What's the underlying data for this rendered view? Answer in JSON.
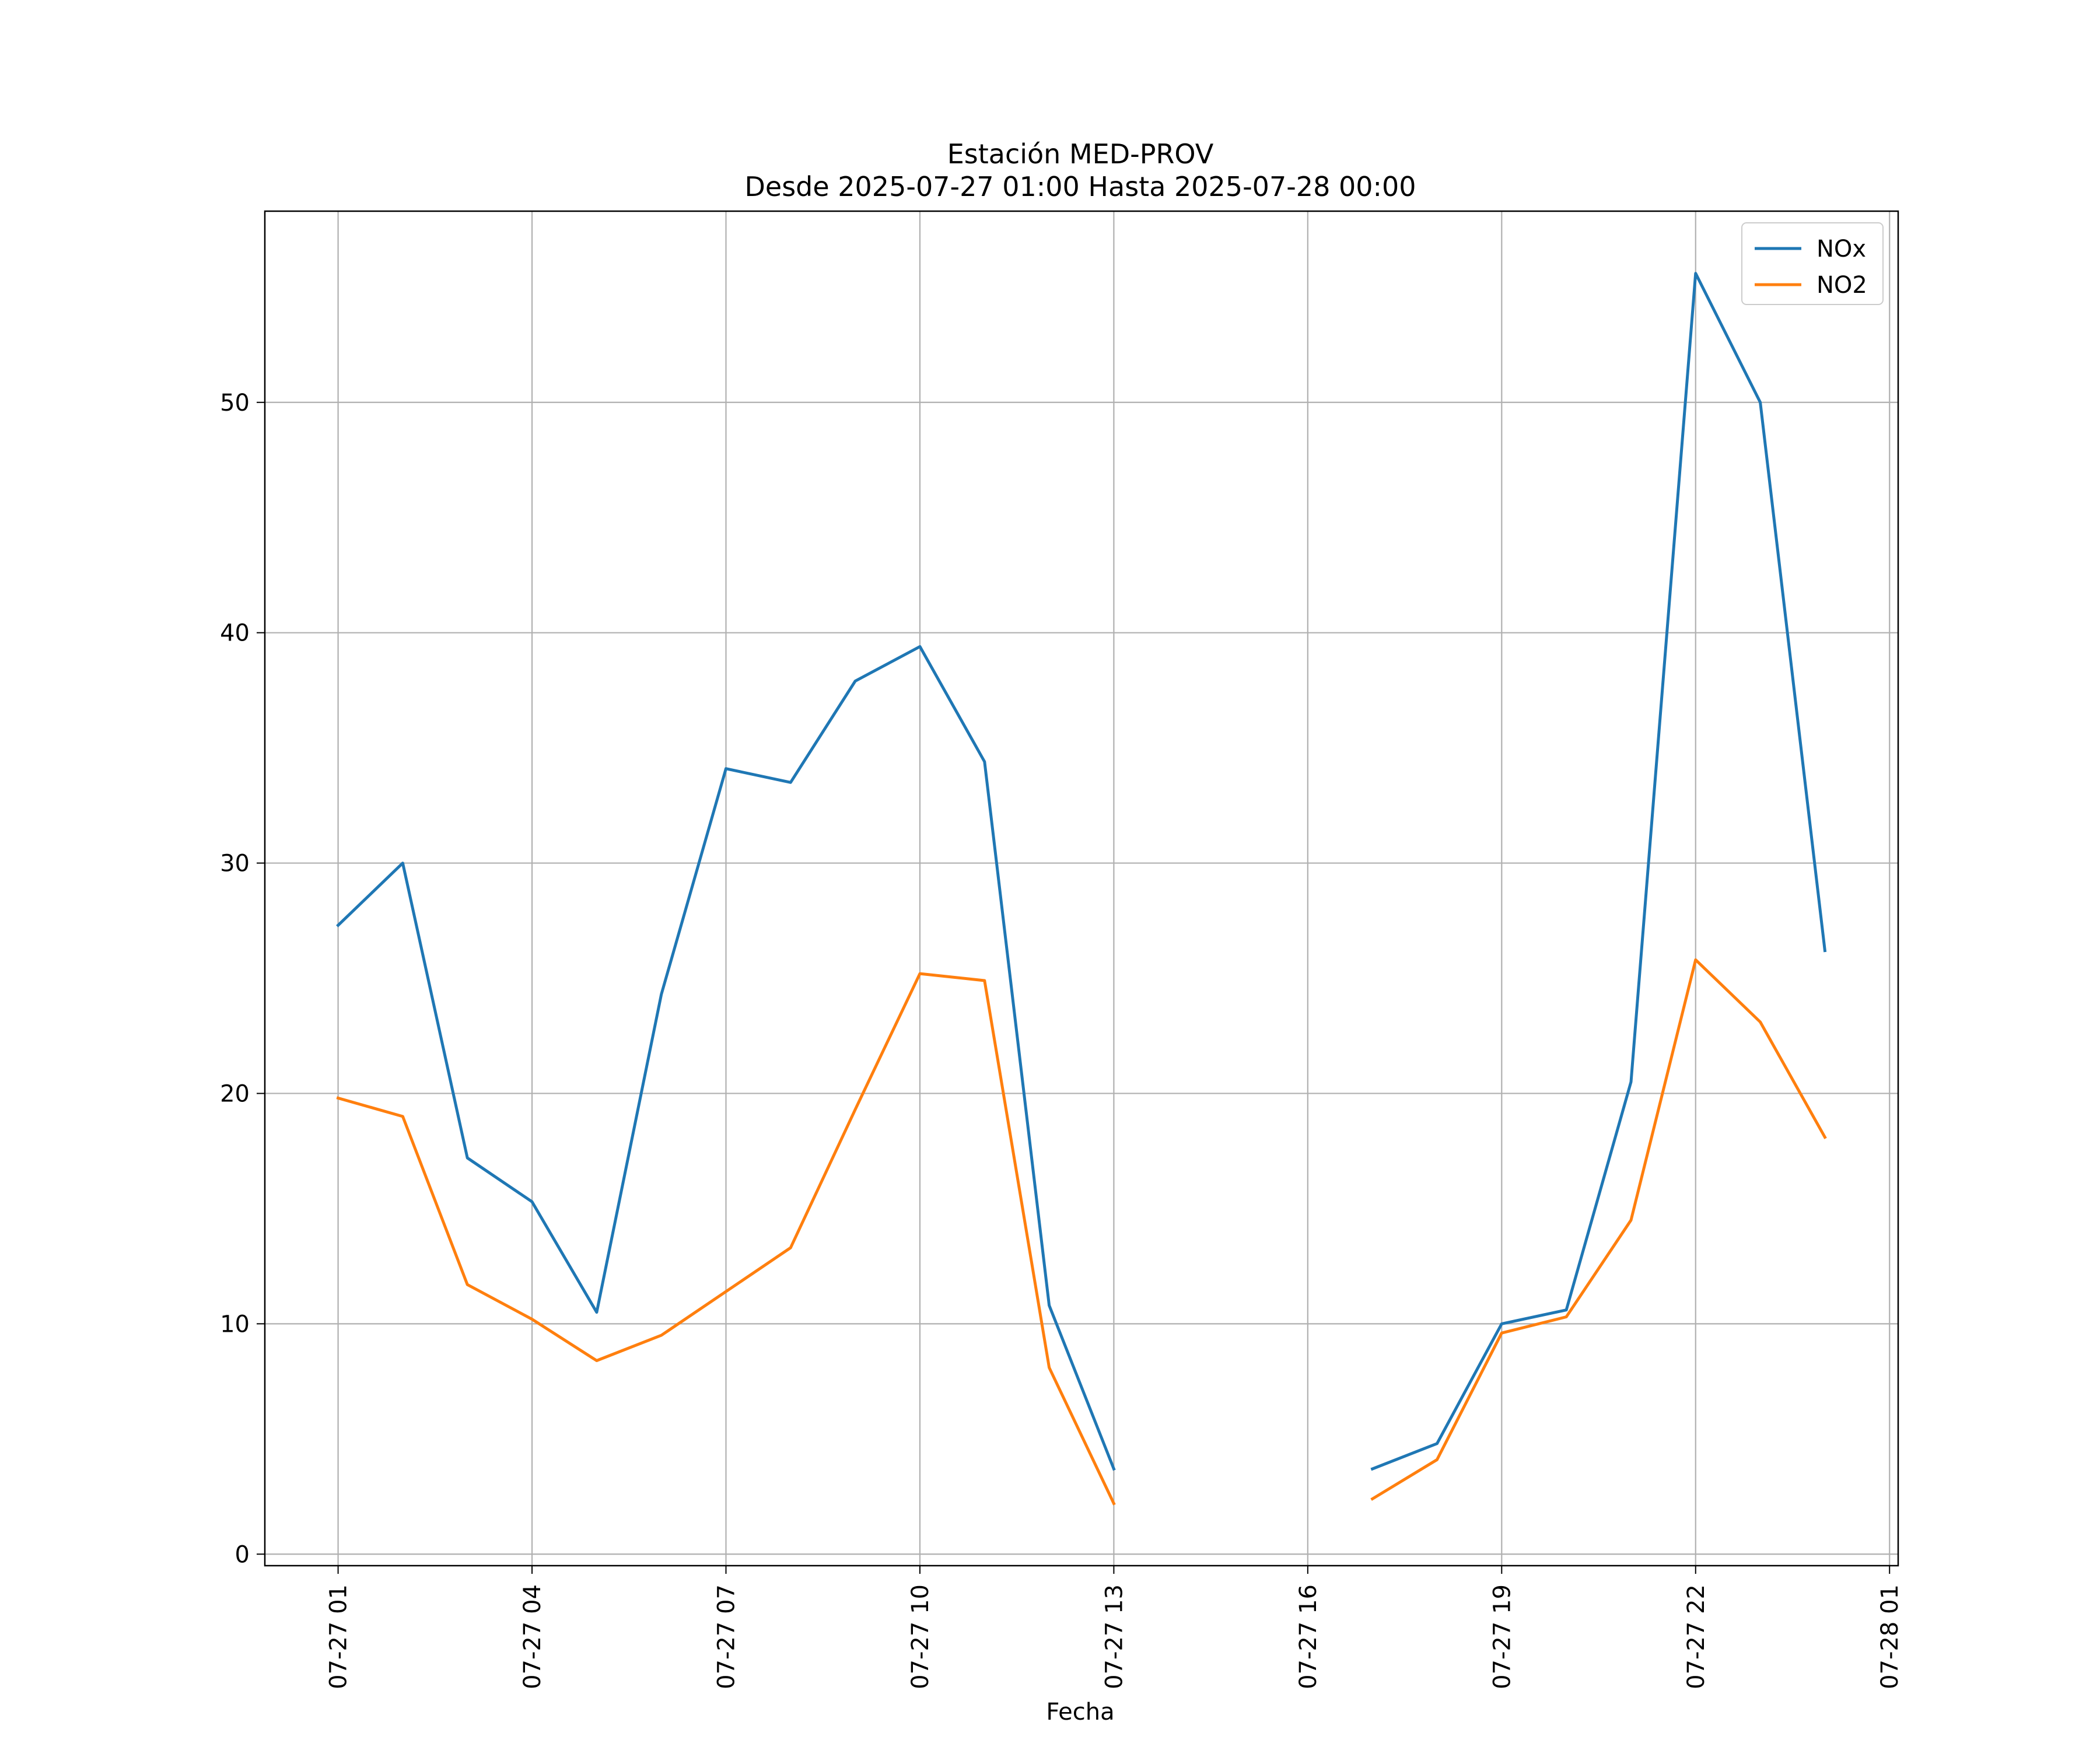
{
  "chart_data": {
    "type": "line",
    "title": "Estación MED-PROV",
    "subtitle": "Desde 2025-07-27 01:00 Hasta 2025-07-28 00:00",
    "xlabel": "Fecha",
    "ylabel": "",
    "x": [
      "2025-07-27 01:00",
      "2025-07-27 02:00",
      "2025-07-27 03:00",
      "2025-07-27 04:00",
      "2025-07-27 05:00",
      "2025-07-27 06:00",
      "2025-07-27 07:00",
      "2025-07-27 08:00",
      "2025-07-27 09:00",
      "2025-07-27 10:00",
      "2025-07-27 11:00",
      "2025-07-27 12:00",
      "2025-07-27 13:00",
      "2025-07-27 14:00",
      "2025-07-27 15:00",
      "2025-07-27 16:00",
      "2025-07-27 17:00",
      "2025-07-27 18:00",
      "2025-07-27 19:00",
      "2025-07-27 20:00",
      "2025-07-27 21:00",
      "2025-07-27 22:00",
      "2025-07-27 23:00",
      "2025-07-28 00:00"
    ],
    "series": [
      {
        "name": "NOx",
        "color": "#1f77b4",
        "values": [
          27.3,
          30.0,
          17.2,
          15.3,
          10.5,
          24.3,
          34.1,
          33.5,
          37.9,
          39.4,
          34.4,
          10.8,
          3.7,
          null,
          null,
          null,
          3.7,
          4.8,
          10.0,
          10.6,
          20.5,
          55.6,
          50.0,
          26.2
        ]
      },
      {
        "name": "NO2",
        "color": "#ff7f0e",
        "values": [
          19.8,
          19.0,
          11.7,
          10.2,
          8.4,
          9.5,
          11.4,
          13.3,
          19.3,
          25.2,
          24.9,
          8.1,
          2.2,
          null,
          null,
          null,
          2.4,
          4.1,
          9.6,
          10.3,
          14.5,
          25.8,
          23.1,
          18.1
        ]
      }
    ],
    "x_ticks": [
      {
        "value": "2025-07-27 01:00",
        "label": "07-27 01"
      },
      {
        "value": "2025-07-27 04:00",
        "label": "07-27 04"
      },
      {
        "value": "2025-07-27 07:00",
        "label": "07-27 07"
      },
      {
        "value": "2025-07-27 10:00",
        "label": "07-27 10"
      },
      {
        "value": "2025-07-27 13:00",
        "label": "07-27 13"
      },
      {
        "value": "2025-07-27 16:00",
        "label": "07-27 16"
      },
      {
        "value": "2025-07-27 19:00",
        "label": "07-27 19"
      },
      {
        "value": "2025-07-27 22:00",
        "label": "07-27 22"
      },
      {
        "value": "2025-07-28 01:00",
        "label": "07-28 01"
      }
    ],
    "y_ticks": [
      0,
      10,
      20,
      30,
      40,
      50
    ],
    "xlim": [
      "2025-07-26 23:52",
      "2025-07-28 01:08"
    ],
    "ylim": [
      -0.5,
      58.3
    ],
    "grid": true,
    "legend_position": "top-right"
  }
}
